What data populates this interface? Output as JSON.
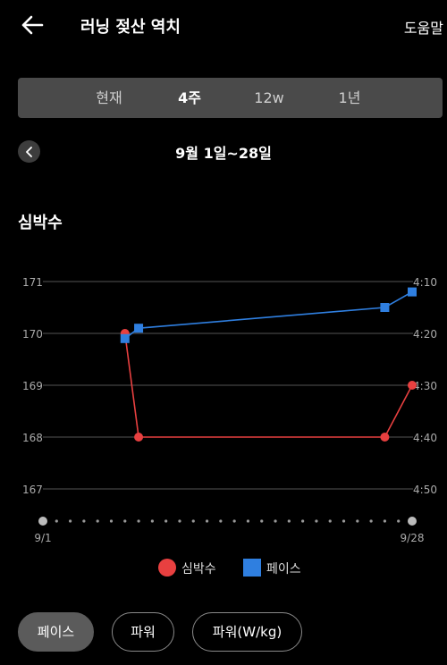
{
  "header": {
    "title": "러닝 젖산 역치",
    "help_label": "도움말"
  },
  "period_tabs": [
    {
      "label": "현재",
      "active": false
    },
    {
      "label": "4주",
      "active": true
    },
    {
      "label": "12w",
      "active": false
    },
    {
      "label": "1년",
      "active": false
    }
  ],
  "date_range": "9월 1일~28일",
  "section_title": "심박수",
  "chart_data": {
    "type": "line",
    "x_tick_labels": [
      "9/1",
      "9/28"
    ],
    "left_axis": {
      "ticks": [
        "171",
        "170",
        "169",
        "168",
        "167"
      ],
      "range": [
        167,
        171
      ]
    },
    "right_axis": {
      "ticks": [
        "4:10",
        "4:20",
        "4:30",
        "4:40",
        "4:50"
      ],
      "range_seconds_per_km": [
        250,
        290
      ]
    },
    "series": [
      {
        "name": "심박수",
        "color": "#e84040",
        "marker": "circle",
        "axis": "left",
        "points": [
          {
            "day": 7,
            "value": 170
          },
          {
            "day": 8,
            "value": 168
          },
          {
            "day": 26,
            "value": 168
          },
          {
            "day": 28,
            "value": 169
          }
        ]
      },
      {
        "name": "페이스",
        "color": "#2f7fe0",
        "marker": "square",
        "axis": "right",
        "points": [
          {
            "day": 7,
            "value": "4:21"
          },
          {
            "day": 8,
            "value": "4:19"
          },
          {
            "day": 26,
            "value": "4:15"
          },
          {
            "day": 28,
            "value": "4:12"
          }
        ]
      }
    ],
    "grid": true,
    "legend_position": "bottom"
  },
  "legend": [
    {
      "label": "심박수",
      "color": "#e84040",
      "icon": "circle"
    },
    {
      "label": "페이스",
      "color": "#2f7fe0",
      "icon": "square"
    }
  ],
  "metric_chips": [
    {
      "label": "페이스",
      "active": true
    },
    {
      "label": "파워",
      "active": false
    },
    {
      "label": "파워(W/kg)",
      "active": false
    }
  ]
}
